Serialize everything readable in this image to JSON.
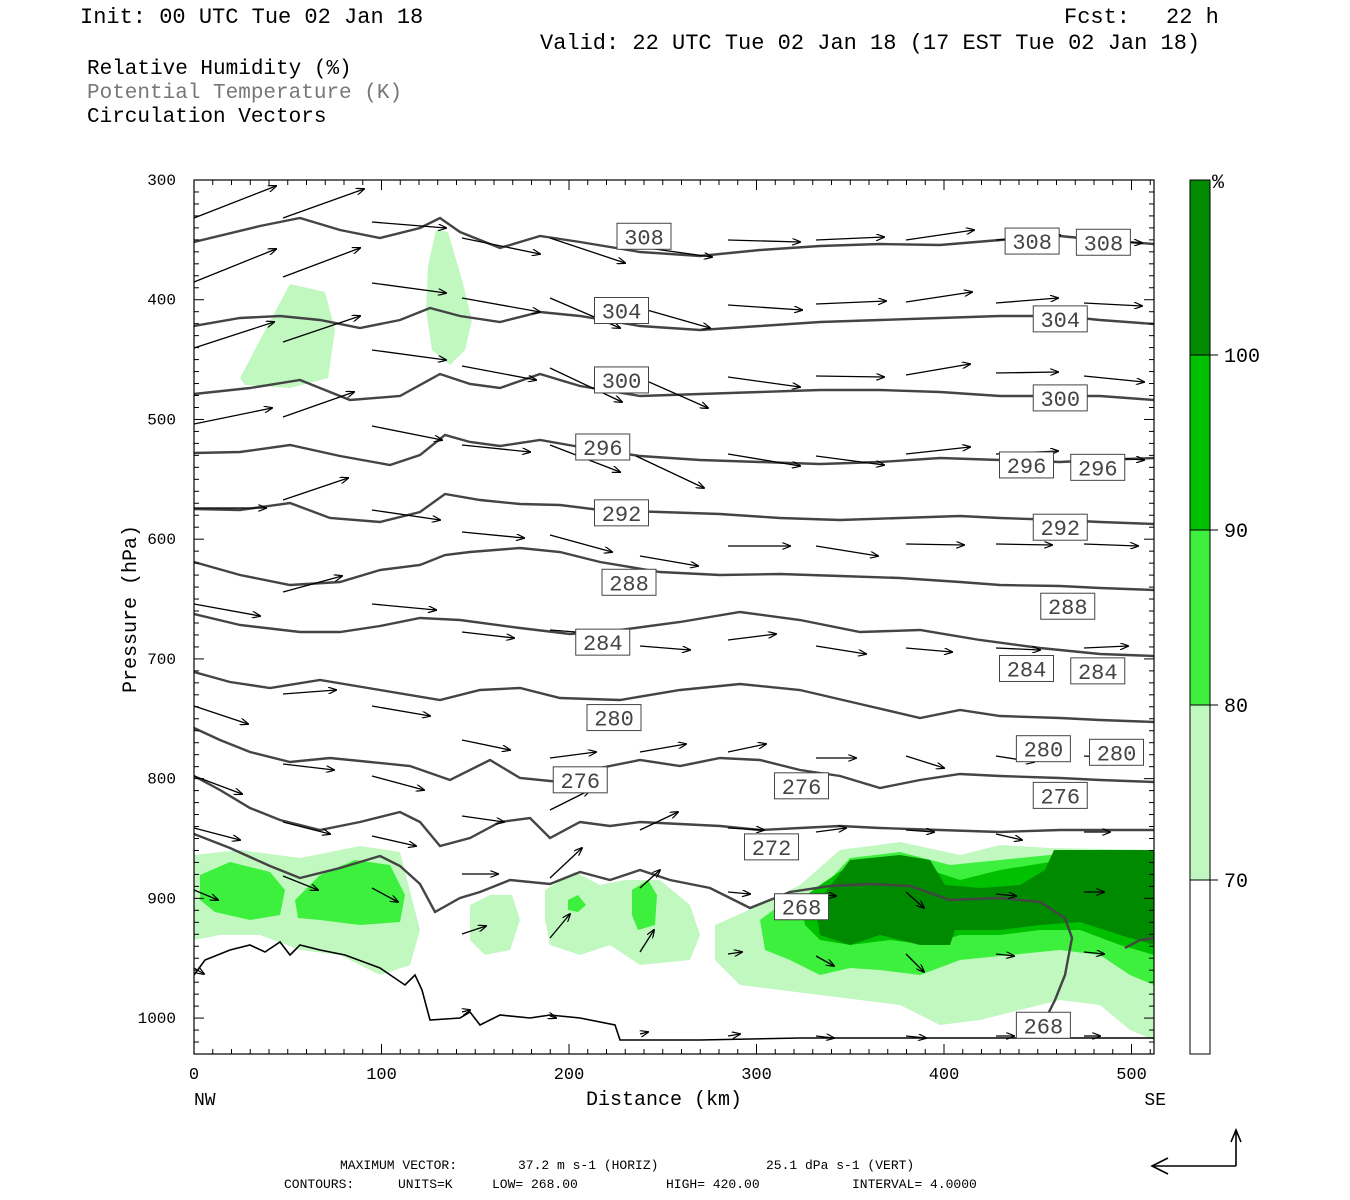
{
  "header": {
    "init": "Init: 00 UTC Tue 02 Jan 18",
    "fcst_label": "Fcst:",
    "fcst_value": "22 h",
    "valid": "Valid: 22 UTC Tue 02 Jan 18 (17 EST Tue 02 Jan 18)"
  },
  "fields": {
    "rh": "Relative Humidity (%)",
    "theta": "Potential Temperature (K)",
    "vectors": "Circulation Vectors"
  },
  "colors": {
    "rh_70": "#c0f8c0",
    "rh_80": "#3df03d",
    "rh_90": "#00c000",
    "rh_100": "#008a00",
    "theta_line": "#444444",
    "theta_label": "#444444",
    "field_theta_text": "#777777"
  },
  "chart_data": {
    "type": "cross-section",
    "x_axis": {
      "label": "Distance (km)",
      "range": [
        0,
        512
      ],
      "ticks": [
        "0",
        "100",
        "200",
        "300",
        "400",
        "500"
      ],
      "left_end_label": "NW",
      "right_end_label": "SE"
    },
    "y_axis": {
      "label": "Pressure (hPa)",
      "range": [
        300,
        1030
      ],
      "ticks": [
        "300",
        "400",
        "500",
        "600",
        "700",
        "800",
        "900",
        "1000"
      ]
    },
    "colorbar": {
      "unit": "%",
      "levels": [
        "70",
        "80",
        "90",
        "100"
      ]
    },
    "isentropes": [
      {
        "label": "308",
        "at": [
          [
            240,
            347
          ],
          [
            447,
            351
          ],
          [
            485,
            352
          ]
        ]
      },
      {
        "label": "304",
        "at": [
          [
            228,
            409
          ],
          [
            462,
            416
          ]
        ]
      },
      {
        "label": "300",
        "at": [
          [
            228,
            467
          ],
          [
            462,
            482
          ]
        ]
      },
      {
        "label": "296",
        "at": [
          [
            218,
            523
          ],
          [
            444,
            538
          ],
          [
            482,
            540
          ]
        ]
      },
      {
        "label": "292",
        "at": [
          [
            228,
            578
          ],
          [
            462,
            590
          ]
        ]
      },
      {
        "label": "288",
        "at": [
          [
            232,
            636
          ],
          [
            466,
            656
          ]
        ]
      },
      {
        "label": "284",
        "at": [
          [
            218,
            686
          ],
          [
            444,
            708
          ],
          [
            482,
            710
          ]
        ]
      },
      {
        "label": "280",
        "at": [
          [
            224,
            749
          ],
          [
            453,
            775
          ],
          [
            492,
            778
          ]
        ]
      },
      {
        "label": "276",
        "at": [
          [
            206,
            801
          ],
          [
            324,
            806
          ],
          [
            462,
            814
          ]
        ]
      },
      {
        "label": "272",
        "at": [
          [
            308,
            857
          ]
        ]
      },
      {
        "label": "268",
        "at": [
          [
            324,
            907
          ],
          [
            453,
            1006
          ]
        ]
      }
    ],
    "footer": {
      "max_vector_label": "MAXIMUM VECTOR:",
      "max_vector_horiz": "37.2 m s-1 (HORIZ)",
      "max_vector_vert": "25.1 dPa s-1 (VERT)",
      "contours_label": "CONTOURS:",
      "units": "UNITS=K",
      "low": "LOW= 268.00",
      "high": "HIGH= 420.00",
      "interval": "INTERVAL= 4.0000"
    }
  }
}
